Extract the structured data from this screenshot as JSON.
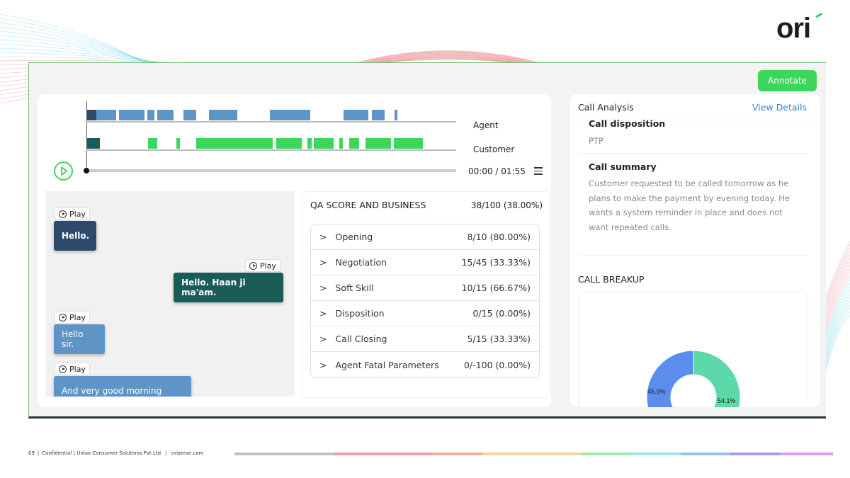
{
  "brand": {
    "logo": "ori",
    "accent": "#3dd65c"
  },
  "toolbar": {
    "annotate_label": "Annotate"
  },
  "player": {
    "tracks": [
      {
        "label": "Agent",
        "color": "#5f94c6"
      },
      {
        "label": "Customer",
        "color": "#3dd65c"
      }
    ],
    "time": "00:00 / 01:55",
    "progress": 0,
    "play_icon": "play-circle-icon",
    "menu_icon": "hamburger-menu-icon"
  },
  "transcript": {
    "play_label": "Play",
    "messages": [
      {
        "speaker": "agent",
        "text": "Hello."
      },
      {
        "speaker": "customer",
        "text": "Hello. Haan ji ma'am."
      },
      {
        "speaker": "agent",
        "text": "Hello sir."
      },
      {
        "speaker": "agent",
        "text": "And very good morning"
      }
    ]
  },
  "qa": {
    "title": "QA SCORE AND BUSINESS",
    "total": "38/100 (38.00%)",
    "rows": [
      {
        "label": "Opening",
        "score": "8/10 (80.00%)"
      },
      {
        "label": "Negotiation",
        "score": "15/45 (33.33%)"
      },
      {
        "label": "Soft Skill",
        "score": "10/15 (66.67%)"
      },
      {
        "label": "Disposition",
        "score": "0/15 (0.00%)"
      },
      {
        "label": "Call Closing",
        "score": "5/15 (33.33%)"
      },
      {
        "label": "Agent Fatal Parameters",
        "score": "0/-100 (0.00%)"
      }
    ]
  },
  "analysis": {
    "title": "Call Analysis",
    "view_details": "View Details",
    "disposition_label": "Call disposition",
    "disposition_value": "PTP",
    "summary_label": "Call summary",
    "summary_text": "Customer requested to be called tomorrow as he plans to make the payment by evening today. He wants a system reminder in place and does not want repeated calls.",
    "breakup_title": "CALL BREAKUP",
    "breakup": [
      {
        "label": "45.9%",
        "value": 45.9,
        "color": "#5b8def"
      },
      {
        "label": "54.1%",
        "value": 54.1,
        "color": "#5cd9a6"
      }
    ]
  },
  "footer": {
    "page": "09",
    "text": "Confidential | Unlax Consumer Solutions Pvt Ltd",
    "site": "oriserve.com"
  }
}
